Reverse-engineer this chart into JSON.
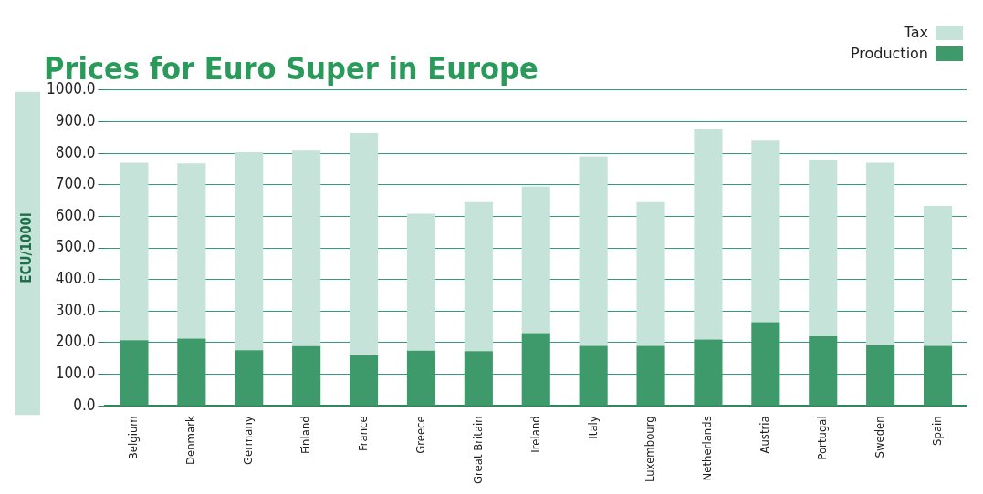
{
  "chart_data": {
    "type": "bar",
    "title": "Prices for Euro Super in Europe",
    "ylabel": "ECU/1000l",
    "categories": [
      "Belgium",
      "Denmark",
      "Germany",
      "Finland",
      "France",
      "Greece",
      "Great Britain",
      "Ireland",
      "Italy",
      "Luxembourg",
      "Netherlands",
      "Austria",
      "Portugal",
      "Sweden",
      "Spain"
    ],
    "series": [
      {
        "name": "Production",
        "color": "#3f9a6b",
        "values": [
          208,
          213,
          176,
          189,
          160,
          175,
          173,
          230,
          190,
          190,
          210,
          265,
          220,
          192,
          190
        ]
      },
      {
        "name": "Tax",
        "color": "#c5e3d8",
        "values": [
          562,
          555,
          627,
          619,
          704,
          433,
          472,
          465,
          600,
          455,
          665,
          575,
          560,
          578,
          443
        ]
      }
    ],
    "stacked": true,
    "ylim": [
      0,
      1000
    ],
    "yticks": [
      {
        "value": 0,
        "label": "0.0"
      },
      {
        "value": 100,
        "label": "100.0"
      },
      {
        "value": 200,
        "label": "200.0"
      },
      {
        "value": 300,
        "label": "300.0"
      },
      {
        "value": 400,
        "label": "400.0"
      },
      {
        "value": 500,
        "label": "500.0"
      },
      {
        "value": 600,
        "label": "600.0"
      },
      {
        "value": 700,
        "label": "700.0"
      },
      {
        "value": 800,
        "label": "800.0"
      },
      {
        "value": 900,
        "label": "900.0"
      },
      {
        "value": 1000,
        "label": "1000.0"
      }
    ],
    "grid": "y",
    "legend": "top right"
  }
}
